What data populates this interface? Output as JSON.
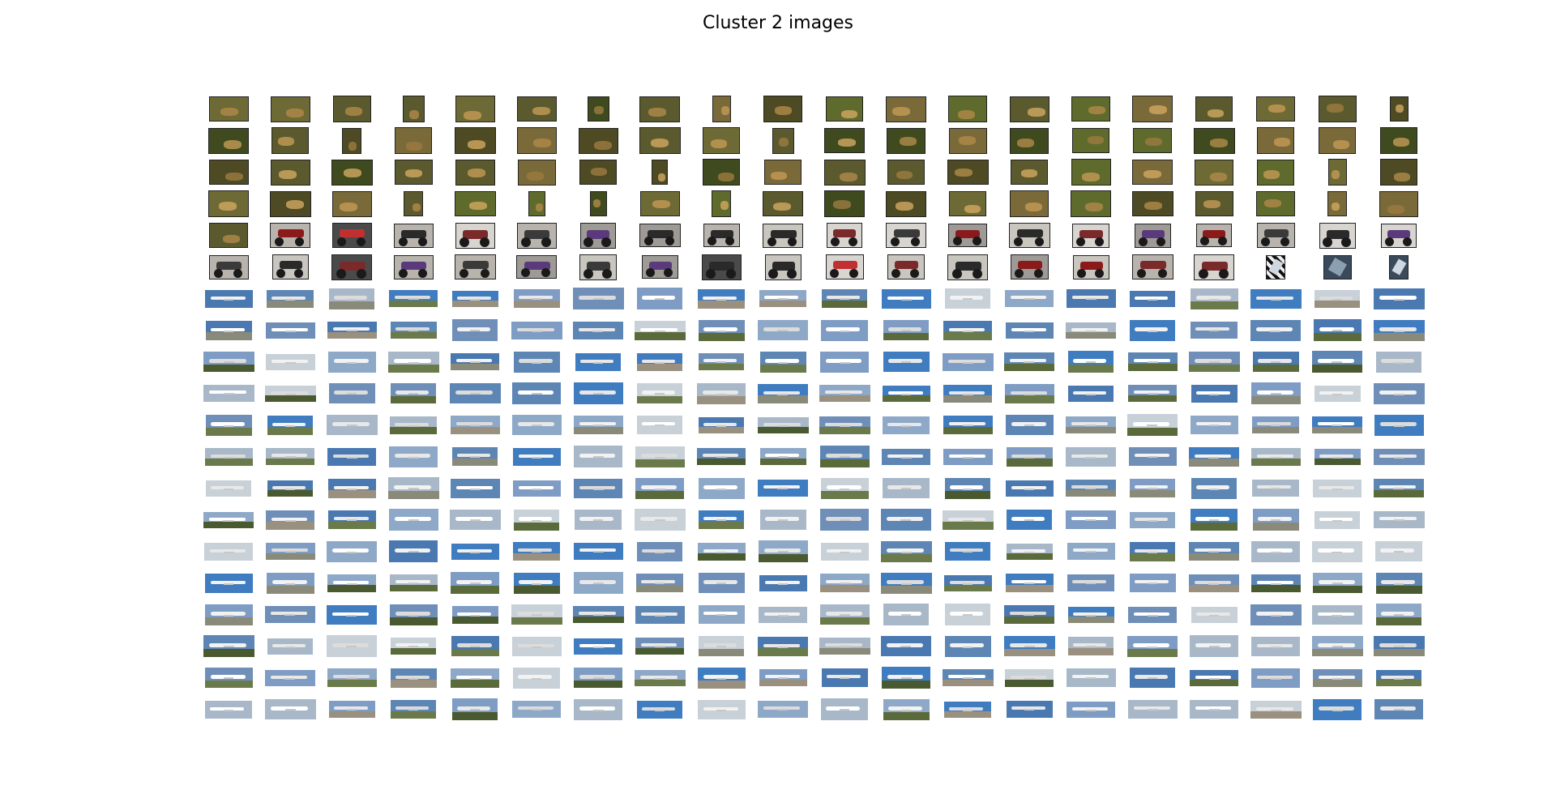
{
  "title": "Cluster 2 images",
  "grid": {
    "rows": 20,
    "cols": 20,
    "row_categories": [
      "leopard",
      "leopard",
      "leopard",
      "leopard",
      "mixed-leopard-motorbike",
      "motorbike",
      "airplane",
      "airplane",
      "airplane",
      "airplane",
      "airplane",
      "airplane",
      "airplane",
      "airplane",
      "airplane",
      "airplane",
      "airplane",
      "airplane",
      "airplane",
      "airplane"
    ],
    "palette": {
      "leopard_bg": [
        "#5b5a2e",
        "#6e6a35",
        "#4d4a24",
        "#7a6a3a",
        "#5e6b2c",
        "#3f4a1e"
      ],
      "leopard_cat": [
        "#b08a4a",
        "#c49a55",
        "#9c7a40",
        "#d2a860"
      ],
      "moto_bg": [
        "#d8d4d0",
        "#9e9a96",
        "#c9c6c0",
        "#4a4a4a",
        "#b8b4ad"
      ],
      "moto_body": [
        "#7a2a2a",
        "#3a3a3a",
        "#8b1a1a",
        "#5a3a7a",
        "#2a2a2a",
        "#c03030"
      ],
      "sky": [
        "#6f8fb8",
        "#3f7cc0",
        "#8ea8c8",
        "#a8b8c8",
        "#5d86b5",
        "#7e9cc4",
        "#c8d0d8",
        "#4a78b0"
      ],
      "ground": [
        "#5a6a3a",
        "#6a7a4a",
        "#8a8a7a",
        "#4a5a30",
        "#9a9080"
      ],
      "plane": [
        "#f2f2f2",
        "#e8e8e8",
        "#dcdcdc",
        "#ffffff"
      ]
    }
  }
}
